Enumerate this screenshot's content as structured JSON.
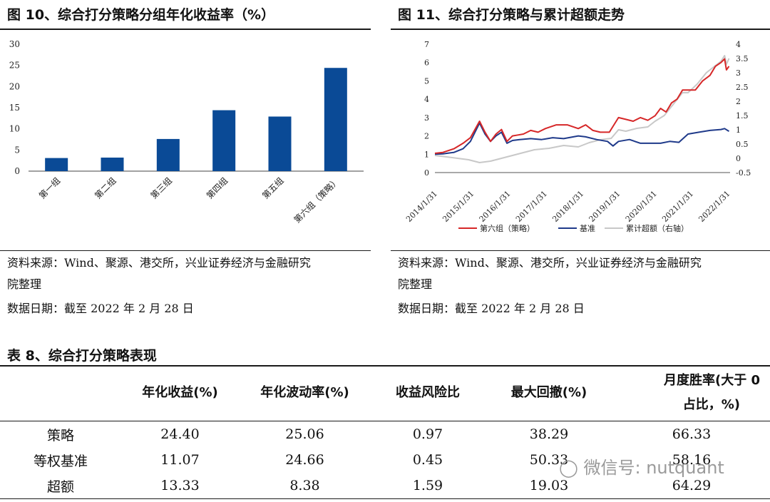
{
  "fig10": {
    "title": "图 10、综合打分策略分组年化收益率（%）",
    "source_line1": "资料来源：Wind、聚源、港交所，兴业证券经济与金融研究",
    "source_line2": "院整理",
    "date": "数据日期：截至 2022 年 2 月 28 日"
  },
  "fig11": {
    "title": "图 11、综合打分策略与累计超额走势",
    "source_line1": "资料来源：Wind、聚源、港交所，兴业证券经济与金融研究",
    "source_line2": "院整理",
    "date": "数据日期：截至 2022 年 2 月 28 日"
  },
  "chart_data": [
    {
      "type": "bar",
      "categories": [
        "第一组",
        "第二组",
        "第三组",
        "第四组",
        "第五组",
        "第六组（策略）"
      ],
      "values": [
        3.1,
        3.2,
        7.6,
        14.4,
        12.9,
        24.4
      ],
      "ylim": [
        0,
        30
      ],
      "yticks": [
        "0",
        "5",
        "10",
        "15",
        "20",
        "25",
        "30"
      ],
      "colors": {
        "bar": "#0a4a96"
      }
    },
    {
      "type": "line",
      "xticks": [
        "2014/1/31",
        "2015/1/31",
        "2016/1/31",
        "2017/1/31",
        "2018/1/31",
        "2019/1/31",
        "2020/1/31",
        "2021/1/31",
        "2022/1/31"
      ],
      "ylim_left": [
        0,
        7
      ],
      "yticks_left": [
        "0",
        "1",
        "2",
        "3",
        "4",
        "5",
        "6",
        "7"
      ],
      "ylim_right": [
        -0.5,
        4
      ],
      "yticks_right": [
        "-0.5",
        "0",
        "0.5",
        "1",
        "1.5",
        "2",
        "2.5",
        "3",
        "3.5",
        "4"
      ],
      "legend": [
        "第六组（策略）",
        "基准",
        "累计超额（右轴）"
      ],
      "legend_position": "bottom",
      "series": [
        {
          "name": "第六组（策略）",
          "axis": "left",
          "color": "#d62728",
          "x": [
            2014.08,
            2014.3,
            2014.6,
            2014.85,
            2015.05,
            2015.3,
            2015.45,
            2015.6,
            2015.75,
            2015.9,
            2016.05,
            2016.2,
            2016.35,
            2016.5,
            2016.7,
            2016.9,
            2017.1,
            2017.4,
            2017.7,
            2018.0,
            2018.2,
            2018.4,
            2018.6,
            2018.85,
            2019.1,
            2019.3,
            2019.5,
            2019.7,
            2019.9,
            2020.1,
            2020.25,
            2020.4,
            2020.55,
            2020.7,
            2020.85,
            2021.0,
            2021.2,
            2021.4,
            2021.6,
            2021.75,
            2021.9,
            2022.0,
            2022.05,
            2022.12
          ],
          "y": [
            1.05,
            1.1,
            1.3,
            1.6,
            1.9,
            2.8,
            2.2,
            1.7,
            2.1,
            2.35,
            1.7,
            2.0,
            2.05,
            2.1,
            2.3,
            2.2,
            2.4,
            2.6,
            2.6,
            2.4,
            2.6,
            2.3,
            2.2,
            2.2,
            3.0,
            2.9,
            2.8,
            3.0,
            2.85,
            3.1,
            3.5,
            3.3,
            3.8,
            4.0,
            4.5,
            4.5,
            4.5,
            5.0,
            5.3,
            5.8,
            6.0,
            6.2,
            5.6,
            5.8
          ]
        },
        {
          "name": "基准",
          "axis": "left",
          "color": "#1f3a8a",
          "x": [
            2014.08,
            2014.3,
            2014.6,
            2014.85,
            2015.05,
            2015.3,
            2015.45,
            2015.6,
            2015.75,
            2015.9,
            2016.05,
            2016.2,
            2016.4,
            2016.7,
            2017.0,
            2017.3,
            2017.6,
            2018.0,
            2018.2,
            2018.5,
            2018.8,
            2018.95,
            2019.1,
            2019.4,
            2019.7,
            2020.0,
            2020.25,
            2020.5,
            2020.75,
            2021.0,
            2021.3,
            2021.6,
            2021.9,
            2022.0,
            2022.12
          ],
          "y": [
            1.0,
            1.02,
            1.1,
            1.3,
            1.7,
            2.7,
            2.1,
            1.7,
            2.0,
            2.2,
            1.6,
            1.75,
            1.8,
            1.85,
            1.8,
            1.9,
            1.85,
            2.0,
            1.95,
            1.8,
            1.7,
            1.45,
            1.7,
            1.8,
            1.6,
            1.6,
            1.6,
            1.7,
            1.65,
            2.1,
            2.2,
            2.3,
            2.35,
            2.4,
            2.25
          ]
        },
        {
          "name": "累计超额（右轴）",
          "axis": "right",
          "color": "#c8c8c8",
          "x": [
            2014.08,
            2014.4,
            2014.7,
            2015.0,
            2015.3,
            2015.6,
            2015.9,
            2016.2,
            2016.5,
            2016.8,
            2017.2,
            2017.6,
            2018.0,
            2018.3,
            2018.6,
            2018.9,
            2019.1,
            2019.3,
            2019.6,
            2019.9,
            2020.1,
            2020.35,
            2020.6,
            2020.85,
            2021.0,
            2021.25,
            2021.5,
            2021.7,
            2021.9,
            2022.0,
            2022.05,
            2022.12
          ],
          "y": [
            0.1,
            0.05,
            0.0,
            -0.05,
            -0.15,
            -0.1,
            0.0,
            0.1,
            0.2,
            0.3,
            0.35,
            0.45,
            0.4,
            0.55,
            0.65,
            0.7,
            1.0,
            0.95,
            1.05,
            1.1,
            1.3,
            1.5,
            1.9,
            2.3,
            2.3,
            2.6,
            3.0,
            3.2,
            3.4,
            3.6,
            3.3,
            3.5
          ]
        }
      ]
    }
  ],
  "table8": {
    "title": "表 8、综合打分策略表现",
    "headers": [
      "年化收益(%)",
      "年化波动率(%)",
      "收益风险比",
      "最大回撤(%)",
      "月度胜率(大于 0",
      "占比，%)"
    ],
    "rows": [
      {
        "label": "策略",
        "values": [
          "24.40",
          "25.06",
          "0.97",
          "38.29",
          "66.33"
        ]
      },
      {
        "label": "等权基准",
        "values": [
          "11.07",
          "24.66",
          "0.45",
          "50.33",
          "58.16"
        ]
      },
      {
        "label": "超额",
        "values": [
          "13.33",
          "8.38",
          "1.59",
          "19.03",
          "64.29"
        ]
      }
    ]
  },
  "watermark": "微信号: nutquant"
}
